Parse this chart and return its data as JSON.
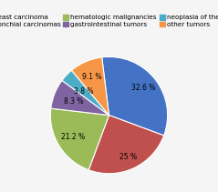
{
  "labels": [
    "breast carcinoma",
    "bronchial carcinomas",
    "hematologic malignancies",
    "gastrointestinal tumors",
    "neoplasia of the skin",
    "other tumors"
  ],
  "values": [
    32.6,
    25.0,
    21.2,
    8.3,
    3.8,
    9.1
  ],
  "colors": [
    "#4472C4",
    "#C0504D",
    "#9BBB59",
    "#8064A2",
    "#4BACC6",
    "#F79646"
  ],
  "autopct_labels": [
    "32.6 %",
    "25 %",
    "21.2 %",
    "8.3 %",
    "3.8 %",
    "9.1 %"
  ],
  "pct_distances": [
    0.75,
    0.78,
    0.72,
    0.65,
    0.6,
    0.72
  ],
  "startangle": 97,
  "legend_fontsize": 5.2,
  "autopct_fontsize": 5.5,
  "background_color": "#f5f5f5"
}
